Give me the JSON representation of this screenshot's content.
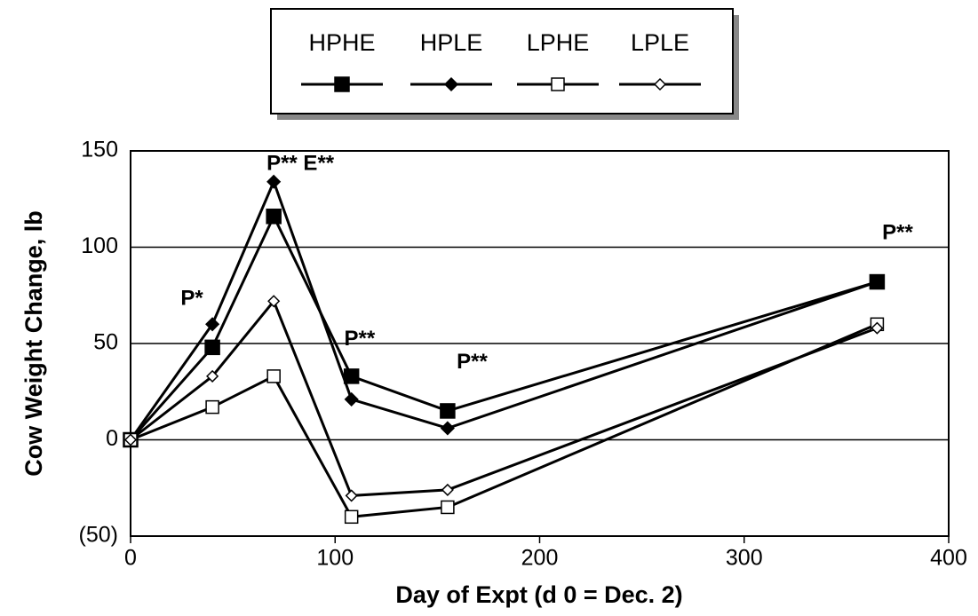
{
  "chart_data": {
    "type": "line",
    "xlabel": "Day of Expt (d 0 = Dec. 2)",
    "ylabel": "Cow Weight Change, lb",
    "x": [
      0,
      40,
      70,
      108,
      155,
      365
    ],
    "series": [
      {
        "name": "HPHE",
        "color": "#000000",
        "marker": "square",
        "filled": true,
        "values": [
          0,
          48,
          116,
          33,
          15,
          82
        ]
      },
      {
        "name": "HPLE",
        "color": "#000000",
        "marker": "diamond",
        "filled": true,
        "values": [
          0,
          60,
          134,
          21,
          6,
          82
        ]
      },
      {
        "name": "LPHE",
        "color": "#000000",
        "marker": "square",
        "filled": false,
        "values": [
          0,
          17,
          33,
          -40,
          -35,
          60
        ]
      },
      {
        "name": "LPLE",
        "color": "#000000",
        "marker": "diamond",
        "filled": false,
        "values": [
          0,
          33,
          72,
          -29,
          -26,
          58
        ]
      }
    ],
    "xlim": [
      0,
      400
    ],
    "xticks": [
      0,
      100,
      200,
      300,
      400
    ],
    "ylim": [
      -50,
      150
    ],
    "yticks": [
      {
        "value": -50,
        "label": "(50)"
      },
      0,
      50,
      100,
      150
    ],
    "grid": true,
    "legend": "top",
    "annotations": [
      "P*",
      "P** E**",
      "P**",
      "P**",
      "P**"
    ]
  }
}
